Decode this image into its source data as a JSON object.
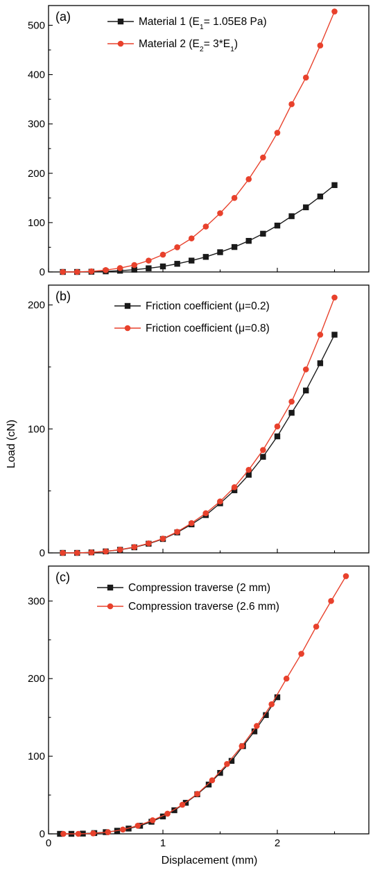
{
  "figure": {
    "ylabel": "Load (cN)",
    "xlabel": "Displacement (mm)"
  },
  "chart_data": [
    {
      "type": "line",
      "panel_label": "(a)",
      "title": "",
      "xlabel": "Displacement (mm)",
      "ylabel": "Load (cN)",
      "xlim": [
        0,
        2.8
      ],
      "ylim": [
        0,
        540
      ],
      "x_ticks": [
        0,
        1,
        2
      ],
      "y_ticks": [
        0,
        100,
        200,
        300,
        400,
        500
      ],
      "grid": false,
      "legend_position": "top",
      "series": [
        {
          "name": "Material 1 (E1= 1.05E8 Pa)",
          "legend": {
            "pre": "Material 1 (E",
            "sub": "1",
            "post": "= 1.05E8 Pa)"
          },
          "marker": "square",
          "color": "#1a1a1a",
          "x": [
            0.125,
            0.25,
            0.375,
            0.5,
            0.625,
            0.75,
            0.875,
            1.0,
            1.125,
            1.25,
            1.375,
            1.5,
            1.625,
            1.75,
            1.875,
            2.0,
            2.125,
            2.25,
            2.375,
            2.5
          ],
          "y": [
            0,
            0,
            0.4,
            1.2,
            2.5,
            4.5,
            7.4,
            11.2,
            16.5,
            23,
            30.5,
            40,
            50.5,
            63,
            77.5,
            94,
            113,
            131,
            153,
            176
          ]
        },
        {
          "name": "Material 2 (E2= 3*E1)",
          "legend": {
            "pre": "Material 2 (E",
            "sub": "2",
            "mid": "= 3*E",
            "sub2": "1",
            "post": ")"
          },
          "marker": "circle",
          "color": "#e8412c",
          "x": [
            0.125,
            0.25,
            0.375,
            0.5,
            0.625,
            0.75,
            0.875,
            1.0,
            1.125,
            1.25,
            1.375,
            1.5,
            1.625,
            1.75,
            1.875,
            2.0,
            2.125,
            2.25,
            2.375,
            2.5
          ],
          "y": [
            0,
            0,
            1.2,
            3.8,
            7.8,
            14,
            23,
            35,
            50,
            68,
            92,
            119,
            150,
            188,
            232,
            282,
            340,
            394,
            459,
            528
          ]
        }
      ]
    },
    {
      "type": "line",
      "panel_label": "(b)",
      "title": "",
      "xlabel": "Displacement (mm)",
      "ylabel": "Load (cN)",
      "xlim": [
        0,
        2.8
      ],
      "ylim": [
        0,
        216
      ],
      "x_ticks": [
        0,
        1,
        2
      ],
      "y_ticks": [
        0,
        100,
        200
      ],
      "grid": false,
      "legend_position": "top",
      "series": [
        {
          "name": "Friction coefficient (μ=0.2)",
          "legend": {
            "pre": "Friction coefficient (μ=0.2)"
          },
          "marker": "square",
          "color": "#1a1a1a",
          "x": [
            0.125,
            0.25,
            0.375,
            0.5,
            0.625,
            0.75,
            0.875,
            1.0,
            1.125,
            1.25,
            1.375,
            1.5,
            1.625,
            1.75,
            1.875,
            2.0,
            2.125,
            2.25,
            2.375,
            2.5
          ],
          "y": [
            0,
            0,
            0.4,
            1.2,
            2.5,
            4.5,
            7.4,
            11.2,
            16.5,
            23,
            30.5,
            40,
            50.5,
            63,
            77.5,
            94,
            113,
            131,
            153,
            176
          ]
        },
        {
          "name": "Friction coefficient (μ=0.8)",
          "legend": {
            "pre": "Friction coefficient (μ=0.8)"
          },
          "marker": "circle",
          "color": "#e8412c",
          "x": [
            0.125,
            0.25,
            0.375,
            0.5,
            0.625,
            0.75,
            0.875,
            1.0,
            1.125,
            1.25,
            1.375,
            1.5,
            1.625,
            1.75,
            1.875,
            2.0,
            2.125,
            2.25,
            2.375,
            2.5
          ],
          "y": [
            0,
            0,
            0.4,
            1.2,
            2.6,
            4.7,
            7.7,
            11.5,
            17,
            24,
            32,
            41.5,
            53,
            67,
            83,
            102,
            122,
            148,
            176,
            206
          ]
        }
      ]
    },
    {
      "type": "line",
      "panel_label": "(c)",
      "title": "",
      "xlabel": "Displacement (mm)",
      "ylabel": "Load (cN)",
      "xlim": [
        0,
        2.8
      ],
      "ylim": [
        0,
        345
      ],
      "x_ticks": [
        0,
        1,
        2
      ],
      "y_ticks": [
        0,
        100,
        200,
        300
      ],
      "grid": false,
      "legend_position": "top",
      "series": [
        {
          "name": "Compression traverse (2 mm)",
          "legend": {
            "pre": "Compression traverse (2 mm)"
          },
          "marker": "square",
          "color": "#1a1a1a",
          "x": [
            0.1,
            0.2,
            0.3,
            0.4,
            0.5,
            0.6,
            0.7,
            0.8,
            0.9,
            1.0,
            1.1,
            1.2,
            1.3,
            1.4,
            1.5,
            1.6,
            1.7,
            1.8,
            1.9,
            2.0
          ],
          "y": [
            0,
            0,
            0.3,
            1,
            2.2,
            4,
            6.8,
            10.4,
            15.6,
            22.4,
            30.4,
            40,
            51,
            63.5,
            78.5,
            94,
            113,
            132,
            153,
            176
          ]
        },
        {
          "name": "Compression traverse (2.6 mm)",
          "legend": {
            "pre": "Compression traverse (2.6 mm)"
          },
          "marker": "circle",
          "color": "#e8412c",
          "x": [
            0.13,
            0.26,
            0.39,
            0.52,
            0.65,
            0.78,
            0.91,
            1.04,
            1.17,
            1.3,
            1.43,
            1.56,
            1.69,
            1.82,
            1.95,
            2.08,
            2.21,
            2.34,
            2.47,
            2.6
          ],
          "y": [
            0,
            0,
            0.6,
            2.2,
            5.5,
            10.5,
            17.5,
            26,
            37.5,
            51.5,
            69,
            90,
            113,
            139,
            167,
            200,
            232,
            267,
            300,
            332
          ]
        }
      ]
    }
  ]
}
